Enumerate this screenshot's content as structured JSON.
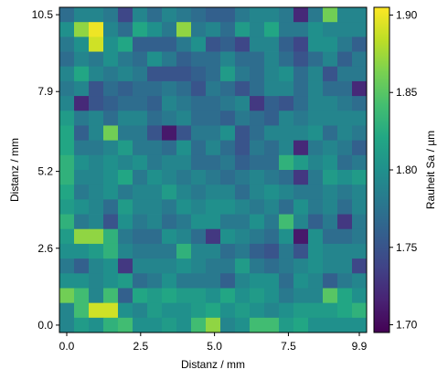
{
  "chart_data": {
    "type": "heatmap",
    "title": "",
    "xlabel": "Distanz / mm",
    "ylabel": "Distanz / mm",
    "colorbar_label": "Rauheit Sa / µm",
    "colormap": "viridis",
    "x_range": [
      0.0,
      9.9
    ],
    "y_range": [
      0.0,
      10.5
    ],
    "x_ticks": [
      0.0,
      2.5,
      5.0,
      7.5,
      9.9
    ],
    "x_tick_labels": [
      "0.0",
      "2.5",
      "5.0",
      "7.5",
      "9.9"
    ],
    "y_ticks": [
      0.0,
      2.6,
      5.2,
      7.9,
      10.5
    ],
    "y_tick_labels": [
      "0.0",
      "2.6",
      "5.2",
      "7.9",
      "10.5"
    ],
    "color_range": [
      1.695,
      1.905
    ],
    "colorbar_ticks": [
      1.7,
      1.75,
      1.8,
      1.85,
      1.9
    ],
    "colorbar_tick_labels": [
      "1.70",
      "1.75",
      "1.80",
      "1.85",
      "1.90"
    ],
    "grid": false,
    "n_cols": 21,
    "n_rows": 22,
    "values_top_to_bottom": [
      [
        1.77,
        1.79,
        1.79,
        1.78,
        1.74,
        1.79,
        1.77,
        1.79,
        1.78,
        1.77,
        1.76,
        1.76,
        1.78,
        1.79,
        1.79,
        1.78,
        1.72,
        1.78,
        1.86,
        1.79,
        1.79
      ],
      [
        1.8,
        1.87,
        1.9,
        1.79,
        1.77,
        1.82,
        1.8,
        1.78,
        1.87,
        1.78,
        1.79,
        1.77,
        1.81,
        1.79,
        1.82,
        1.78,
        1.78,
        1.8,
        1.79,
        1.79,
        1.79
      ],
      [
        1.78,
        1.8,
        1.89,
        1.8,
        1.82,
        1.76,
        1.76,
        1.76,
        1.78,
        1.8,
        1.75,
        1.76,
        1.74,
        1.79,
        1.79,
        1.76,
        1.74,
        1.8,
        1.8,
        1.78,
        1.76
      ],
      [
        1.77,
        1.79,
        1.78,
        1.8,
        1.78,
        1.77,
        1.8,
        1.78,
        1.76,
        1.77,
        1.77,
        1.79,
        1.77,
        1.77,
        1.79,
        1.77,
        1.75,
        1.77,
        1.79,
        1.76,
        1.78
      ],
      [
        1.79,
        1.82,
        1.79,
        1.78,
        1.79,
        1.78,
        1.75,
        1.75,
        1.75,
        1.76,
        1.77,
        1.81,
        1.78,
        1.77,
        1.79,
        1.8,
        1.77,
        1.79,
        1.75,
        1.78,
        1.78
      ],
      [
        1.78,
        1.79,
        1.75,
        1.77,
        1.76,
        1.77,
        1.77,
        1.78,
        1.77,
        1.75,
        1.78,
        1.77,
        1.75,
        1.77,
        1.79,
        1.79,
        1.77,
        1.79,
        1.77,
        1.77,
        1.72
      ],
      [
        1.79,
        1.72,
        1.75,
        1.76,
        1.77,
        1.77,
        1.76,
        1.79,
        1.78,
        1.77,
        1.77,
        1.78,
        1.79,
        1.73,
        1.76,
        1.75,
        1.77,
        1.79,
        1.79,
        1.78,
        1.77
      ],
      [
        1.81,
        1.78,
        1.79,
        1.77,
        1.79,
        1.79,
        1.77,
        1.78,
        1.79,
        1.77,
        1.77,
        1.76,
        1.78,
        1.77,
        1.76,
        1.79,
        1.78,
        1.79,
        1.79,
        1.79,
        1.79
      ],
      [
        1.82,
        1.76,
        1.79,
        1.86,
        1.78,
        1.78,
        1.75,
        1.71,
        1.75,
        1.78,
        1.78,
        1.8,
        1.75,
        1.77,
        1.79,
        1.79,
        1.79,
        1.8,
        1.77,
        1.79,
        1.78
      ],
      [
        1.82,
        1.78,
        1.78,
        1.79,
        1.81,
        1.78,
        1.78,
        1.77,
        1.8,
        1.77,
        1.79,
        1.77,
        1.75,
        1.78,
        1.77,
        1.79,
        1.72,
        1.78,
        1.79,
        1.78,
        1.76
      ],
      [
        1.83,
        1.8,
        1.79,
        1.8,
        1.79,
        1.8,
        1.78,
        1.79,
        1.79,
        1.77,
        1.77,
        1.78,
        1.76,
        1.77,
        1.77,
        1.83,
        1.81,
        1.79,
        1.8,
        1.77,
        1.78
      ],
      [
        1.83,
        1.79,
        1.79,
        1.8,
        1.82,
        1.78,
        1.8,
        1.79,
        1.78,
        1.79,
        1.78,
        1.77,
        1.78,
        1.79,
        1.78,
        1.77,
        1.73,
        1.78,
        1.81,
        1.8,
        1.81
      ],
      [
        1.82,
        1.78,
        1.79,
        1.8,
        1.78,
        1.79,
        1.79,
        1.81,
        1.79,
        1.78,
        1.79,
        1.79,
        1.77,
        1.79,
        1.8,
        1.79,
        1.78,
        1.78,
        1.79,
        1.78,
        1.79
      ],
      [
        1.81,
        1.8,
        1.79,
        1.77,
        1.81,
        1.79,
        1.79,
        1.78,
        1.8,
        1.79,
        1.8,
        1.8,
        1.79,
        1.78,
        1.79,
        1.77,
        1.8,
        1.78,
        1.79,
        1.77,
        1.79
      ],
      [
        1.83,
        1.78,
        1.79,
        1.75,
        1.8,
        1.78,
        1.79,
        1.77,
        1.78,
        1.8,
        1.8,
        1.78,
        1.78,
        1.8,
        1.78,
        1.84,
        1.79,
        1.76,
        1.78,
        1.73,
        1.78
      ],
      [
        1.81,
        1.87,
        1.87,
        1.83,
        1.78,
        1.77,
        1.77,
        1.8,
        1.79,
        1.77,
        1.73,
        1.8,
        1.79,
        1.78,
        1.77,
        1.8,
        1.71,
        1.8,
        1.77,
        1.77,
        1.78
      ],
      [
        1.8,
        1.8,
        1.81,
        1.83,
        1.79,
        1.78,
        1.78,
        1.78,
        1.83,
        1.79,
        1.79,
        1.77,
        1.78,
        1.76,
        1.75,
        1.78,
        1.75,
        1.8,
        1.79,
        1.79,
        1.79
      ],
      [
        1.78,
        1.76,
        1.79,
        1.8,
        1.73,
        1.79,
        1.79,
        1.79,
        1.8,
        1.79,
        1.78,
        1.78,
        1.81,
        1.78,
        1.77,
        1.78,
        1.79,
        1.8,
        1.79,
        1.79,
        1.74
      ],
      [
        1.8,
        1.8,
        1.79,
        1.8,
        1.81,
        1.77,
        1.78,
        1.8,
        1.78,
        1.78,
        1.78,
        1.76,
        1.79,
        1.8,
        1.8,
        1.77,
        1.8,
        1.79,
        1.76,
        1.78,
        1.79
      ],
      [
        1.86,
        1.84,
        1.79,
        1.84,
        1.76,
        1.82,
        1.81,
        1.82,
        1.81,
        1.81,
        1.8,
        1.82,
        1.8,
        1.81,
        1.8,
        1.78,
        1.79,
        1.79,
        1.85,
        1.82,
        1.8
      ],
      [
        1.79,
        1.84,
        1.89,
        1.89,
        1.8,
        1.79,
        1.81,
        1.8,
        1.8,
        1.81,
        1.82,
        1.8,
        1.81,
        1.8,
        1.79,
        1.8,
        1.81,
        1.81,
        1.81,
        1.82,
        1.83
      ],
      [
        1.79,
        1.81,
        1.8,
        1.83,
        1.84,
        1.8,
        1.8,
        1.81,
        1.8,
        1.84,
        1.87,
        1.79,
        1.8,
        1.84,
        1.84,
        1.81,
        1.82,
        1.8,
        1.8,
        1.8,
        1.8
      ]
    ]
  }
}
